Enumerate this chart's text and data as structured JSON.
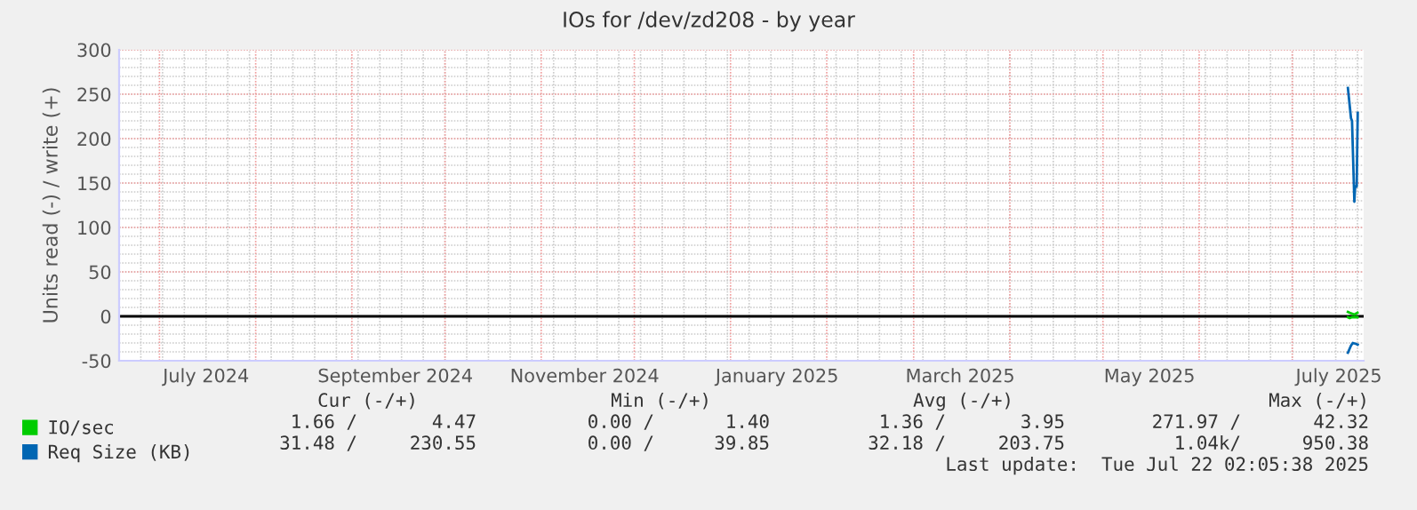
{
  "chart_data": {
    "type": "line",
    "title": "IOs for /dev/zd208 - by year",
    "ylabel": "Units read (-) / write (+)",
    "xlim": [
      "2024-06-18",
      "2025-07-24"
    ],
    "xticks": [
      {
        "value": "2024-07-16",
        "label": "July 2024"
      },
      {
        "value": "2024-09-15",
        "label": "September 2024"
      },
      {
        "value": "2024-11-15",
        "label": "November 2024"
      },
      {
        "value": "2025-01-16",
        "label": "January 2025"
      },
      {
        "value": "2025-03-16",
        "label": "March 2025"
      },
      {
        "value": "2025-05-16",
        "label": "May 2025"
      },
      {
        "value": "2025-07-16",
        "label": "July 2025"
      }
    ],
    "ylim": [
      -50,
      300
    ],
    "yticks": [
      -50,
      0,
      50,
      100,
      150,
      200,
      250,
      300
    ],
    "grid": true,
    "legend": "bottom left",
    "marker": "none",
    "line_style": "solid",
    "ref_lines": [
      {
        "axis": "y",
        "value": 0,
        "color": "#000000"
      }
    ],
    "series": [
      {
        "name": "IO/sec",
        "color": "#00cc00",
        "x": [
          "2025-07-18T22:00",
          "2025-07-19T12:00",
          "2025-07-20T06:00",
          "2025-07-21T00:00",
          "2025-07-22T00:00"
        ],
        "values": [
          5,
          4,
          3,
          2,
          4
        ]
      },
      {
        "color": "#00cc00",
        "x": [
          "2025-07-18T22:00",
          "2025-07-19T12:00",
          "2025-07-20T06:00",
          "2025-07-21T00:00",
          "2025-07-22T00:00"
        ],
        "values": [
          -1,
          -2,
          -1,
          -1,
          -1
        ]
      },
      {
        "name": "Req Size (KB)",
        "color": "#0066b3",
        "x": [
          "2025-07-18T22:00",
          "2025-07-19T22:00",
          "2025-07-20T06:00",
          "2025-07-21T00:00",
          "2025-07-21T06:00",
          "2025-07-21T18:00",
          "2025-07-22T02:00"
        ],
        "values": [
          257,
          223,
          220,
          129,
          146,
          146,
          229
        ]
      },
      {
        "color": "#0066b3",
        "x": [
          "2025-07-18T22:00",
          "2025-07-19T22:00",
          "2025-07-20T12:00",
          "2025-07-21T12:00",
          "2025-07-22T02:00"
        ],
        "values": [
          -41,
          -33,
          -30,
          -31,
          -32
        ]
      }
    ],
    "annotations": [
      "Cur (-/+)",
      "Min (-/+)",
      "Avg (-/+)",
      "Max (-/+)",
      "1.66 /",
      "4.47",
      "0.00 /",
      "1.40",
      "1.36 /",
      "3.95",
      "271.97 /",
      "42.32",
      "31.48 /",
      "230.55",
      "0.00 /",
      "39.85",
      "32.18 /",
      "203.75",
      "1.04k/",
      "950.38",
      "Last update:  Tue Jul 22 02:05:38 2025"
    ]
  }
}
